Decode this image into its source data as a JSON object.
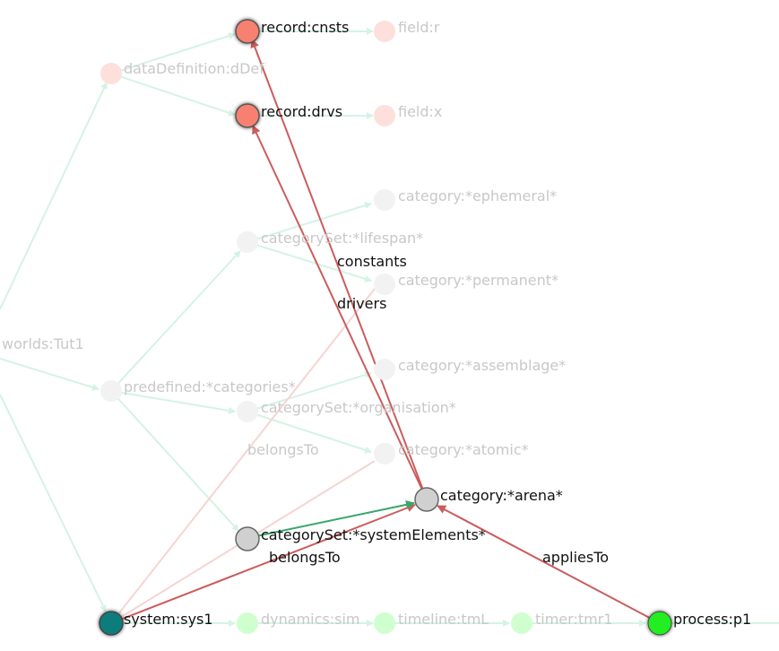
{
  "colors": {
    "faded_edge": "#d4f3e4",
    "faded_red_edge": "#f6d4d4",
    "active_red_edge": "#cc5c5c",
    "active_green_edge": "#3aa66a",
    "record_fill": "#f88070",
    "record_faded": "#fde0db",
    "category_active": "#d0d0d0",
    "category_faded": "#f2f2f2",
    "system_fill": "#0b7c7c",
    "process_fill": "#22ee22",
    "dynamics_faded": "#cfffcf"
  },
  "nodes": {
    "record_cnsts": "record:cnsts",
    "field_r": "field:r",
    "data_definition": "dataDefinition:dDef",
    "record_drvs": "record:drvs",
    "field_x": "field:x",
    "category_ephemeral": "category:*ephemeral*",
    "categoryset_lifespan": "categorySet:*lifespan*",
    "category_permanent": "category:*permanent*",
    "worlds": "worlds:Tut1",
    "category_assemblage": "category:*assemblage*",
    "predefined": "predefined:*categories*",
    "categoryset_organisation": "categorySet:*organisation*",
    "category_atomic": "category:*atomic*",
    "category_arena": "category:*arena*",
    "categoryset_system": "categorySet:*systemElements*",
    "system": "system:sys1",
    "dynamics": "dynamics:sim",
    "timeline": "timeline:tmL",
    "timer": "timer:tmr1",
    "process": "process:p1"
  },
  "edge_labels": {
    "constants": "constants",
    "drivers": "drivers",
    "belongs_to_faded": "belongsTo",
    "belongs_to": "belongsTo",
    "applies_to": "appliesTo"
  }
}
